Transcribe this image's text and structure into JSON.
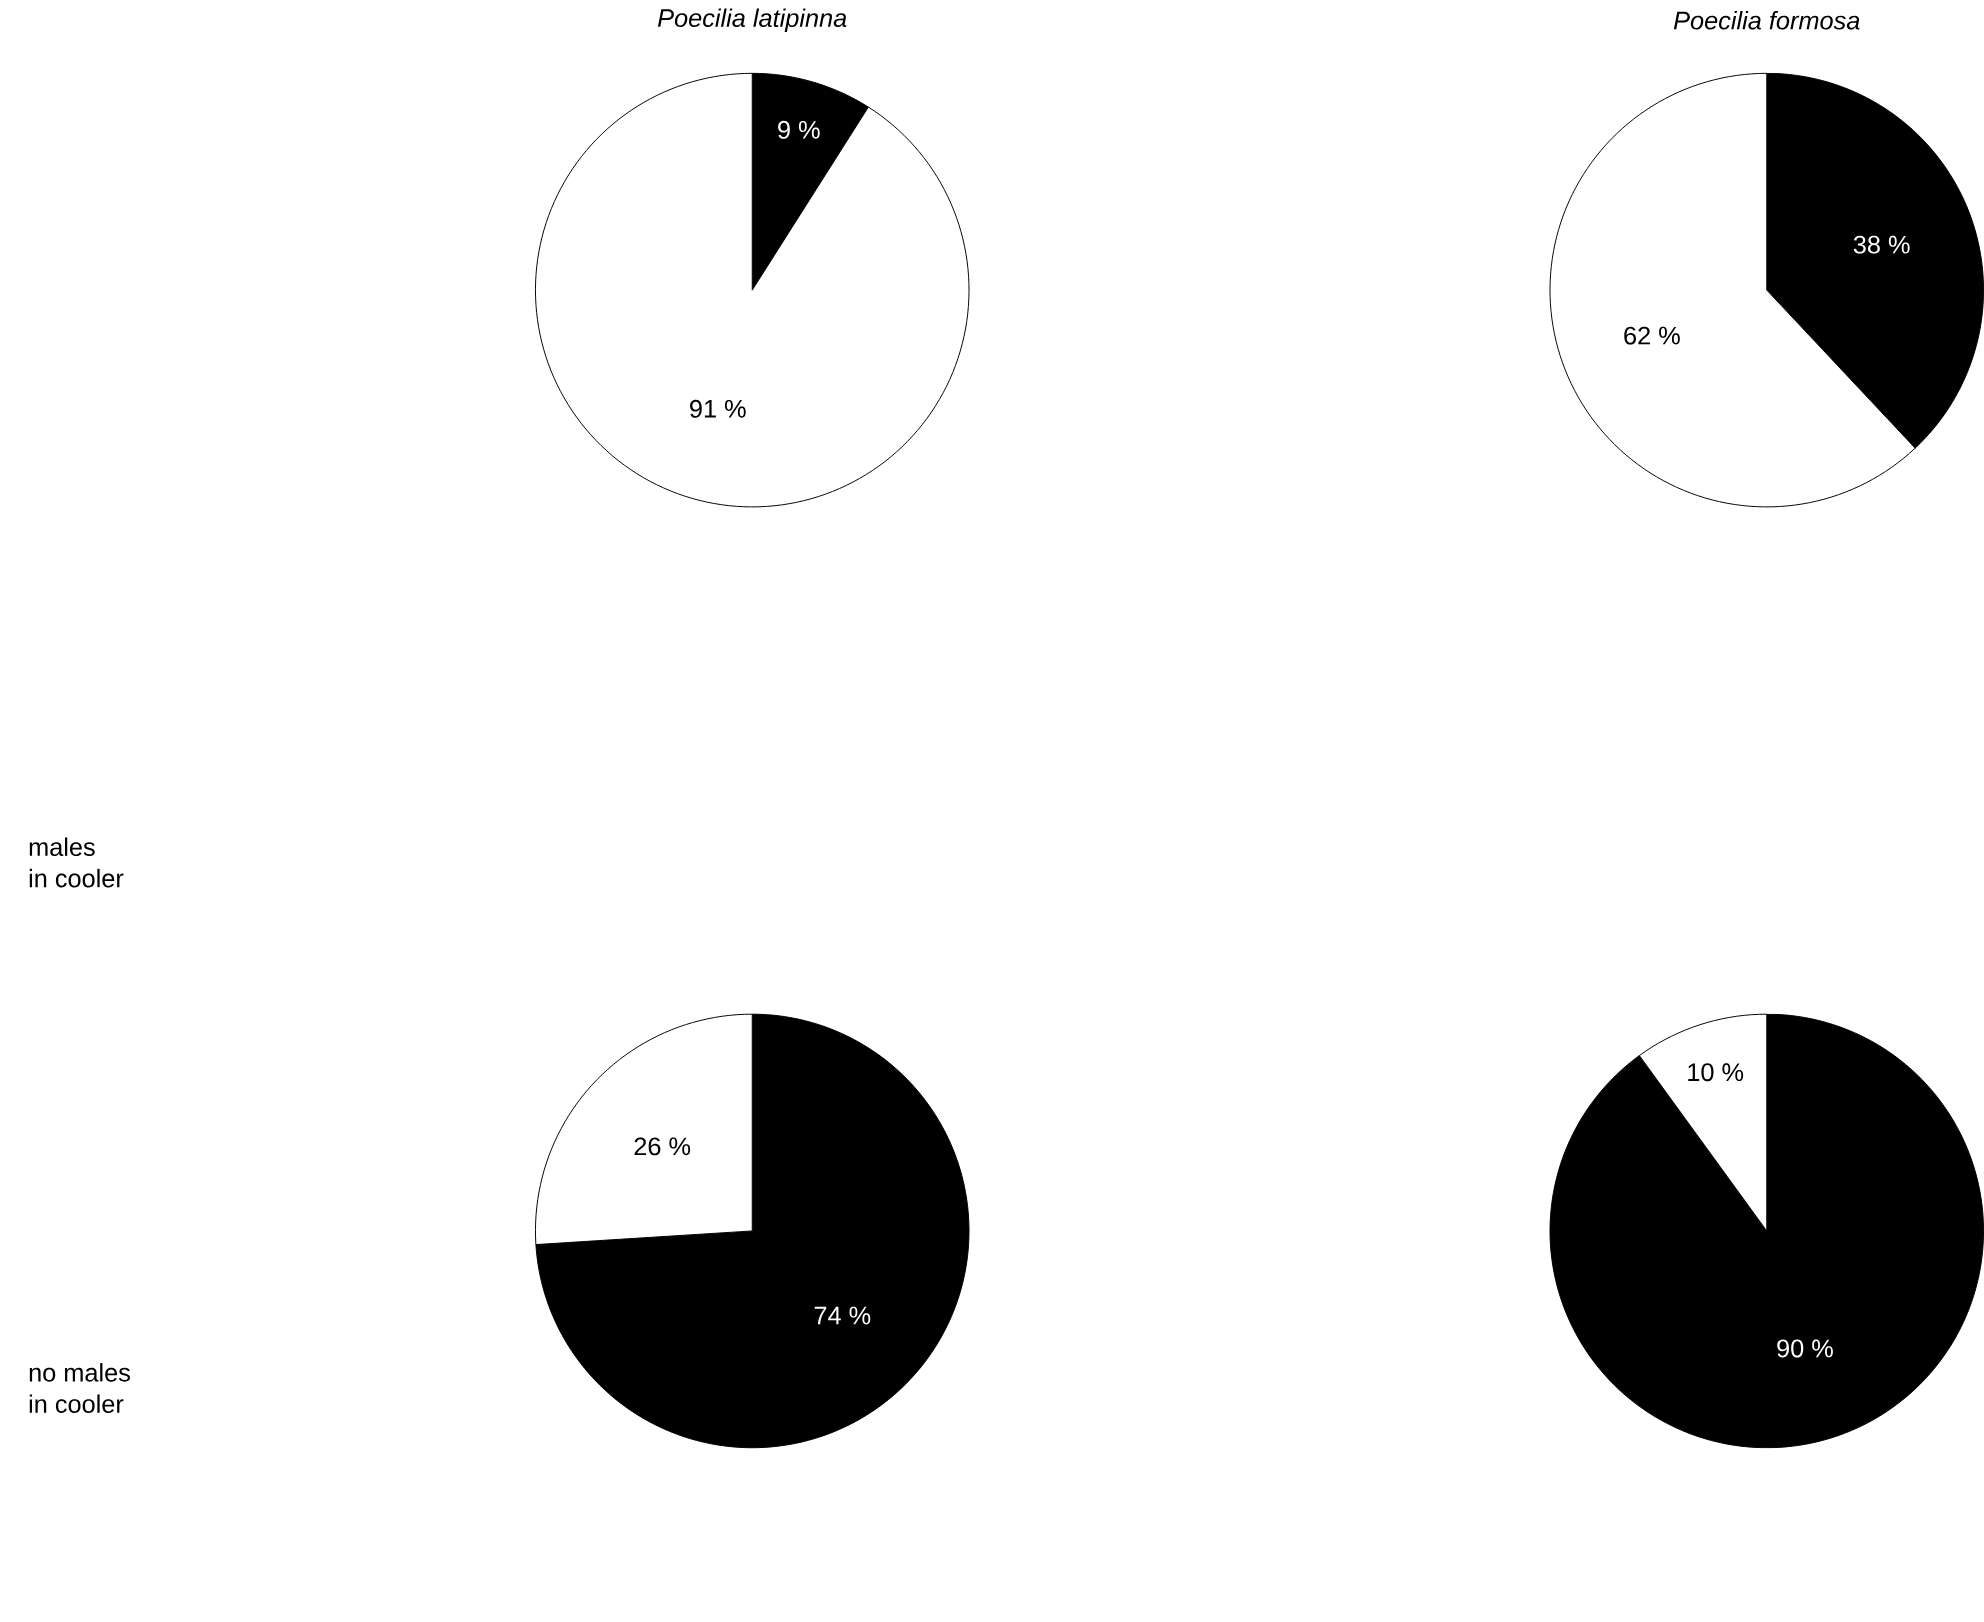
{
  "chart_data": [
    {
      "type": "pie",
      "title": "Poecilia latipinna",
      "ylabel": "males\nin cooler",
      "categories": [
        null,
        null
      ],
      "values": [
        9,
        91
      ],
      "colors": [
        "#000000",
        "#ffffff"
      ],
      "value_labels": [
        "9 %",
        "91 %"
      ]
    },
    {
      "type": "pie",
      "title": "Poecilia formosa",
      "categories": [
        null,
        null
      ],
      "values": [
        38,
        62
      ],
      "colors": [
        "#000000",
        "#ffffff"
      ],
      "value_labels": [
        "38 %",
        "62 %"
      ]
    },
    {
      "type": "pie",
      "ylabel": "no males\nin cooler",
      "categories": [
        null,
        null
      ],
      "values": [
        74,
        26
      ],
      "colors": [
        "#000000",
        "#ffffff"
      ],
      "value_labels": [
        "74 %",
        "26 %"
      ]
    },
    {
      "type": "pie",
      "categories": [
        null,
        null
      ],
      "values": [
        90,
        10
      ],
      "colors": [
        "#000000",
        "#ffffff"
      ],
      "value_labels": [
        "90 %",
        "10 %"
      ]
    }
  ]
}
